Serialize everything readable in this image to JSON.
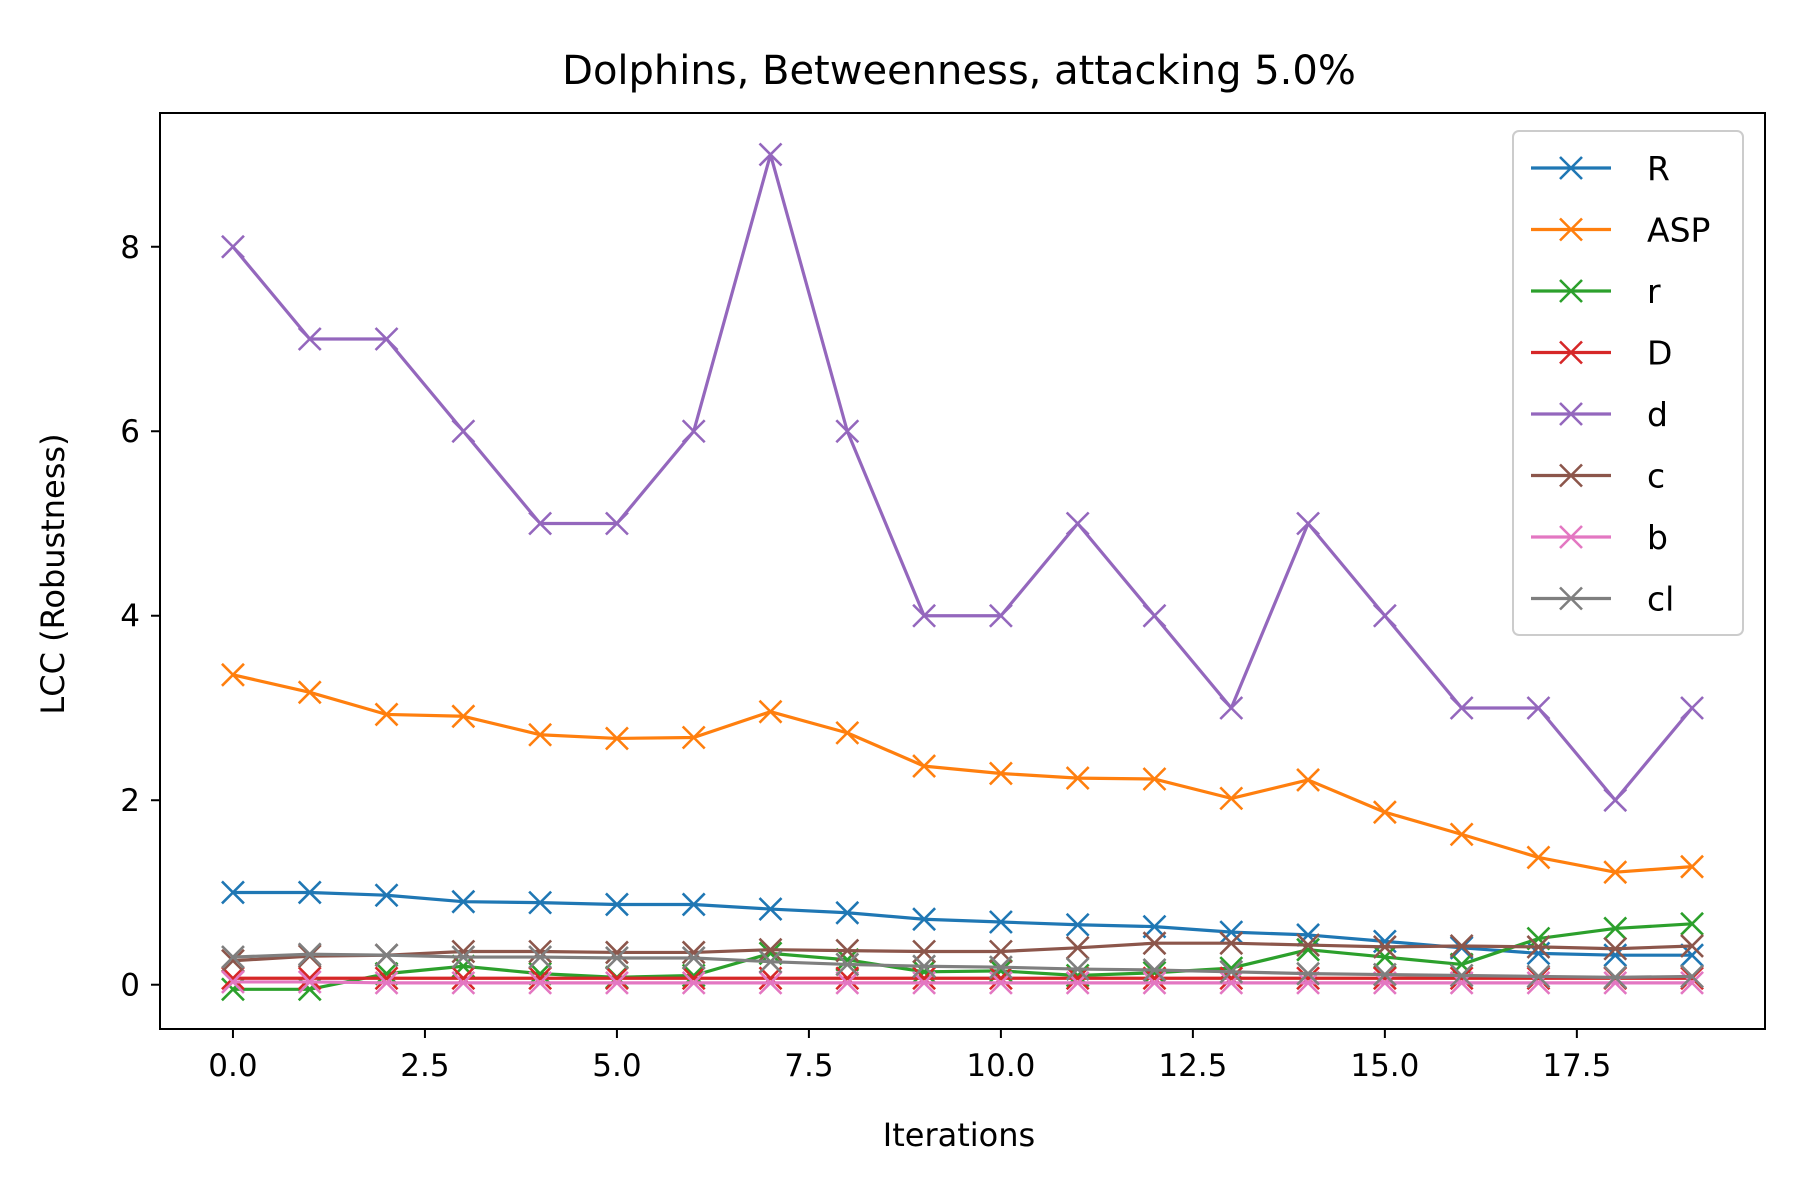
{
  "chart_data": {
    "type": "line",
    "title": "Dolphins, Betweenness, attacking 5.0%",
    "xlabel": "Iterations",
    "ylabel": "LCC (Robustness)",
    "xlim": [
      -0.95,
      19.95
    ],
    "ylim": [
      -0.48,
      9.45
    ],
    "xticks": [
      0.0,
      2.5,
      5.0,
      7.5,
      10.0,
      12.5,
      15.0,
      17.5
    ],
    "xtick_labels": [
      "0.0",
      "2.5",
      "5.0",
      "7.5",
      "10.0",
      "12.5",
      "15.0",
      "17.5"
    ],
    "yticks": [
      0,
      2,
      4,
      6,
      8
    ],
    "ytick_labels": [
      "0",
      "2",
      "4",
      "6",
      "8"
    ],
    "grid": false,
    "legend_position": "top-right",
    "marker": "x",
    "x": [
      0,
      1,
      2,
      3,
      4,
      5,
      6,
      7,
      8,
      9,
      10,
      11,
      12,
      13,
      14,
      15,
      16,
      17,
      18,
      19
    ],
    "series": [
      {
        "name": "R",
        "color": "#1f77b4",
        "values": [
          1.0,
          1.0,
          0.97,
          0.9,
          0.89,
          0.87,
          0.87,
          0.82,
          0.78,
          0.71,
          0.68,
          0.65,
          0.63,
          0.57,
          0.54,
          0.47,
          0.4,
          0.34,
          0.32,
          0.32
        ]
      },
      {
        "name": "ASP",
        "color": "#ff7f0e",
        "values": [
          3.36,
          3.17,
          2.93,
          2.91,
          2.71,
          2.67,
          2.68,
          2.96,
          2.73,
          2.37,
          2.29,
          2.24,
          2.23,
          2.02,
          2.22,
          1.87,
          1.63,
          1.38,
          1.22,
          1.28
        ]
      },
      {
        "name": "r",
        "color": "#2ca02c",
        "values": [
          -0.05,
          -0.05,
          0.12,
          0.2,
          0.12,
          0.08,
          0.1,
          0.34,
          0.27,
          0.14,
          0.15,
          0.1,
          0.13,
          0.18,
          0.38,
          0.3,
          0.22,
          0.5,
          0.61,
          0.66
        ]
      },
      {
        "name": "D",
        "color": "#d62728",
        "values": [
          0.07,
          0.07,
          0.07,
          0.07,
          0.07,
          0.07,
          0.07,
          0.07,
          0.07,
          0.07,
          0.07,
          0.07,
          0.07,
          0.07,
          0.07,
          0.07,
          0.07,
          0.07,
          0.07,
          0.07
        ]
      },
      {
        "name": "d",
        "color": "#9467bd",
        "values": [
          8,
          7,
          7,
          6,
          5,
          5,
          6,
          9,
          6,
          4,
          4,
          5,
          4,
          3,
          5,
          4,
          3,
          3,
          2,
          3
        ]
      },
      {
        "name": "c",
        "color": "#8c564b",
        "values": [
          0.26,
          0.31,
          0.32,
          0.36,
          0.36,
          0.35,
          0.35,
          0.38,
          0.37,
          0.36,
          0.36,
          0.4,
          0.45,
          0.45,
          0.43,
          0.41,
          0.42,
          0.41,
          0.39,
          0.42
        ]
      },
      {
        "name": "b",
        "color": "#e377c2",
        "values": [
          0.03,
          0.03,
          0.02,
          0.02,
          0.02,
          0.02,
          0.02,
          0.02,
          0.02,
          0.02,
          0.02,
          0.02,
          0.02,
          0.02,
          0.02,
          0.02,
          0.02,
          0.02,
          0.02,
          0.02
        ]
      },
      {
        "name": "cl",
        "color": "#7f7f7f",
        "values": [
          0.3,
          0.33,
          0.32,
          0.3,
          0.3,
          0.29,
          0.29,
          0.25,
          0.22,
          0.2,
          0.19,
          0.17,
          0.16,
          0.14,
          0.12,
          0.11,
          0.1,
          0.09,
          0.08,
          0.09
        ]
      }
    ]
  }
}
